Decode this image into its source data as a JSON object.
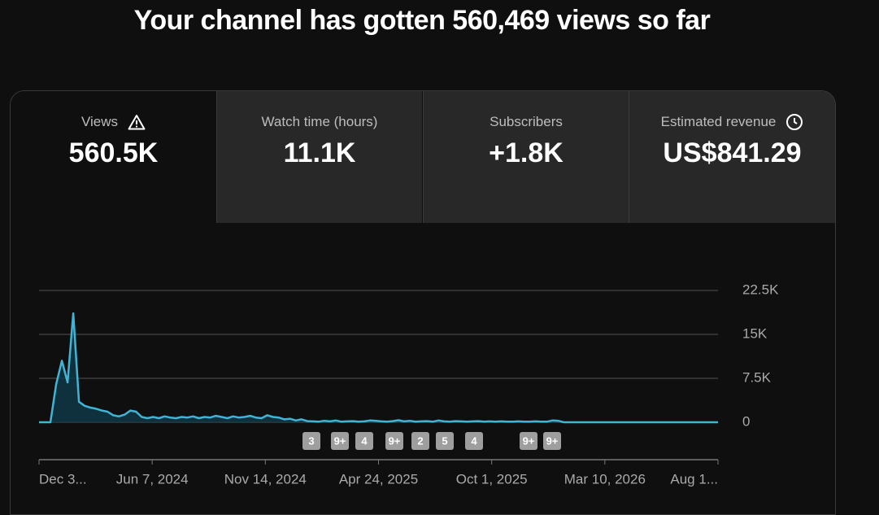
{
  "header": {
    "title": "Your channel has gotten 560,469 views so far"
  },
  "tabs": [
    {
      "label": "Views",
      "value": "560.5K"
    },
    {
      "label": "Watch time (hours)",
      "value": "11.1K"
    },
    {
      "label": "Subscribers",
      "value": "+1.8K"
    },
    {
      "label": "Estimated revenue",
      "value": "US$841.29"
    }
  ],
  "chart": {
    "type": "line",
    "color": "#41b4d6",
    "values": [
      0,
      0,
      0,
      6500,
      10500,
      6800,
      18600,
      3500,
      2800,
      2500,
      2300,
      2000,
      1800,
      1200,
      1000,
      1300,
      2000,
      1800,
      900,
      700,
      900,
      700,
      1000,
      800,
      700,
      900,
      800,
      1000,
      700,
      900,
      800,
      1100,
      900,
      700,
      1000,
      800,
      900,
      1100,
      800,
      700,
      1200,
      900,
      800,
      500,
      600,
      300,
      500,
      200,
      150,
      100,
      250,
      150,
      300,
      100,
      150,
      200,
      100,
      150,
      300,
      250,
      150,
      100,
      200,
      350,
      150,
      250,
      100,
      150,
      200,
      100,
      300,
      150,
      100,
      200,
      150,
      100,
      150,
      200,
      100,
      150,
      100,
      150,
      100,
      100,
      150,
      100,
      100,
      150,
      100,
      100,
      300,
      250,
      0,
      0,
      0,
      0,
      0,
      0,
      0,
      0,
      0,
      0,
      0,
      0,
      0,
      0,
      0,
      0,
      0,
      0,
      0,
      0,
      0,
      0,
      0,
      0,
      0,
      0,
      0,
      0
    ],
    "ylim": [
      0,
      22500
    ],
    "yticks": [
      0,
      {
        "value": 7500,
        "label": "7.5K"
      },
      {
        "value": 15000,
        "label": "15K"
      },
      {
        "value": 22500,
        "label": "22.5K"
      }
    ],
    "x_labels": [
      "Dec 3...",
      "Jun 7, 2024",
      "Nov 14, 2024",
      "Apr 24, 2025",
      "Oct 1, 2025",
      "Mar 10, 2026",
      "Aug 1..."
    ],
    "annotations": [
      "3",
      "9+",
      "4",
      "9+",
      "2",
      "5",
      "4",
      "9+",
      "9+"
    ]
  }
}
